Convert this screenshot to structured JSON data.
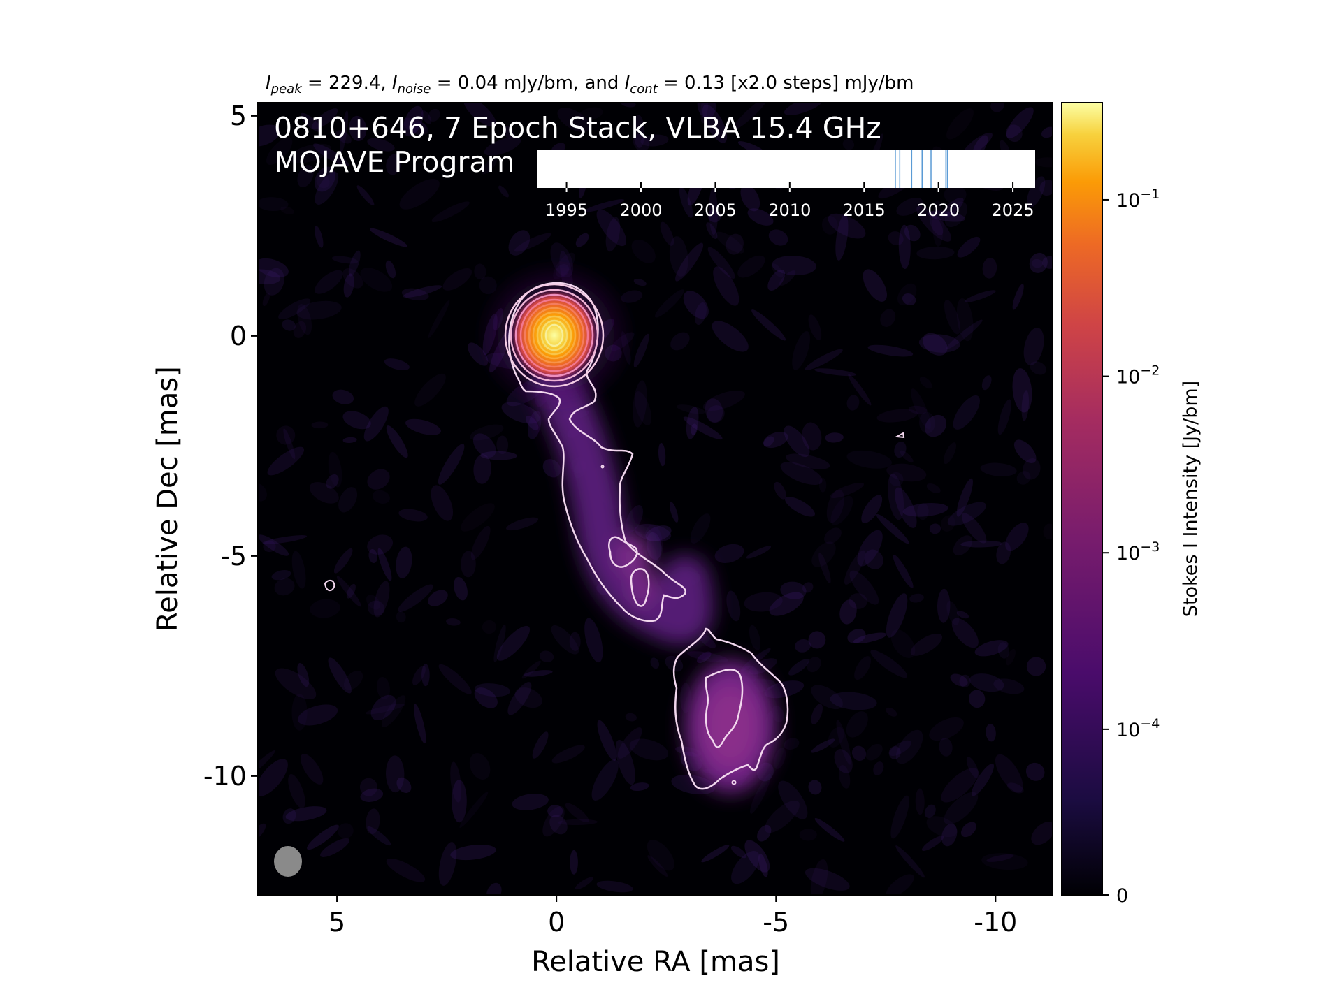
{
  "chart_data": {
    "type": "heatmap",
    "title": "",
    "header": {
      "peak_sym": "I",
      "peak_sub": "peak",
      "peak_text": " = 229.4, ",
      "noise_sym": "I",
      "noise_sub": "noise",
      "noise_text": " = 0.04 mJy/bm, and ",
      "cont_sym": "I",
      "cont_sub": "cont",
      "cont_text": " = 0.13 [x2.0 steps] mJy/bm"
    },
    "annotation_line1": "0810+646, 7 Epoch Stack, VLBA 15.4 GHz",
    "annotation_line2": "MOJAVE Program",
    "xlabel": "Relative RA [mas]",
    "ylabel": "Relative Dec [mas]",
    "xlim": [
      6.8,
      -11.3
    ],
    "ylim": [
      -12.7,
      5.3
    ],
    "x_ticks": [
      {
        "value": 5,
        "label": "5"
      },
      {
        "value": 0,
        "label": "0"
      },
      {
        "value": -5,
        "label": "-5"
      },
      {
        "value": -10,
        "label": "-10"
      }
    ],
    "y_ticks": [
      {
        "value": 5,
        "label": "5"
      },
      {
        "value": 0,
        "label": "0"
      },
      {
        "value": -5,
        "label": "-5"
      },
      {
        "value": -10,
        "label": "-10"
      }
    ],
    "colorbar": {
      "label": "Stokes I Intensity [Jy/bm]",
      "colormap": "inferno",
      "scale": "log",
      "ticks": [
        {
          "value": 0.1,
          "base": "10",
          "exp": "−1"
        },
        {
          "value": 0.01,
          "base": "10",
          "exp": "−2"
        },
        {
          "value": 0.001,
          "base": "10",
          "exp": "−3"
        },
        {
          "value": 0.0001,
          "base": "10",
          "exp": "−4"
        },
        {
          "value": 0,
          "base": "0",
          "exp": ""
        }
      ]
    },
    "epoch_timeline": {
      "xlim": [
        1993,
        2026.5
      ],
      "ticks": [
        "1995",
        "2000",
        "2005",
        "2010",
        "2015",
        "2020",
        "2025"
      ],
      "epochs": [
        2017.1,
        2017.4,
        2018.2,
        2018.9,
        2019.5,
        2020.5,
        2020.6
      ]
    },
    "beam": {
      "major_mas": 1.2,
      "minor_mas": 1.0,
      "color": "#8a8a8a"
    },
    "colors": {
      "background": "#000004",
      "contour": "#f2d7ee",
      "epoch_line": "#5b9bd5"
    }
  }
}
